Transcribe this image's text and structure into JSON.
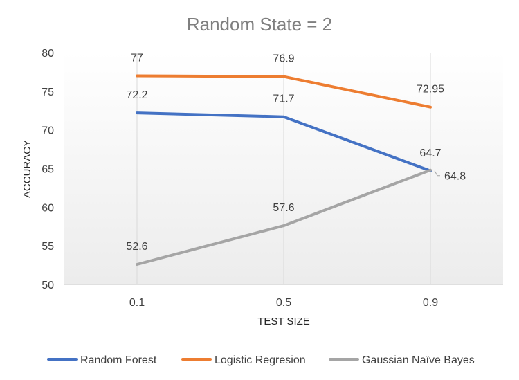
{
  "chart_data": {
    "type": "line",
    "title": "Random State = 2",
    "xlabel": "TEST SIZE",
    "ylabel": "ACCURACY",
    "categories": [
      "0.1",
      "0.5",
      "0.9"
    ],
    "ylim": [
      50,
      80
    ],
    "yticks": [
      "50",
      "55",
      "60",
      "65",
      "70",
      "75",
      "80"
    ],
    "grid": "vertical",
    "legend_position": "bottom",
    "series": [
      {
        "name": "Random Forest",
        "color": "#4472c4",
        "values": [
          72.2,
          71.7,
          64.7
        ],
        "labels": [
          "72.2",
          "71.7",
          "64.7"
        ]
      },
      {
        "name": "Logistic Regresion",
        "color": "#ed7d31",
        "values": [
          77,
          76.9,
          72.95
        ],
        "labels": [
          "77",
          "76.9",
          "72.95"
        ]
      },
      {
        "name": "Gaussian Naïve Bayes",
        "color": "#a5a5a5",
        "values": [
          52.6,
          57.6,
          64.8
        ],
        "labels": [
          "52.6",
          "57.6",
          "64.8"
        ]
      }
    ]
  }
}
